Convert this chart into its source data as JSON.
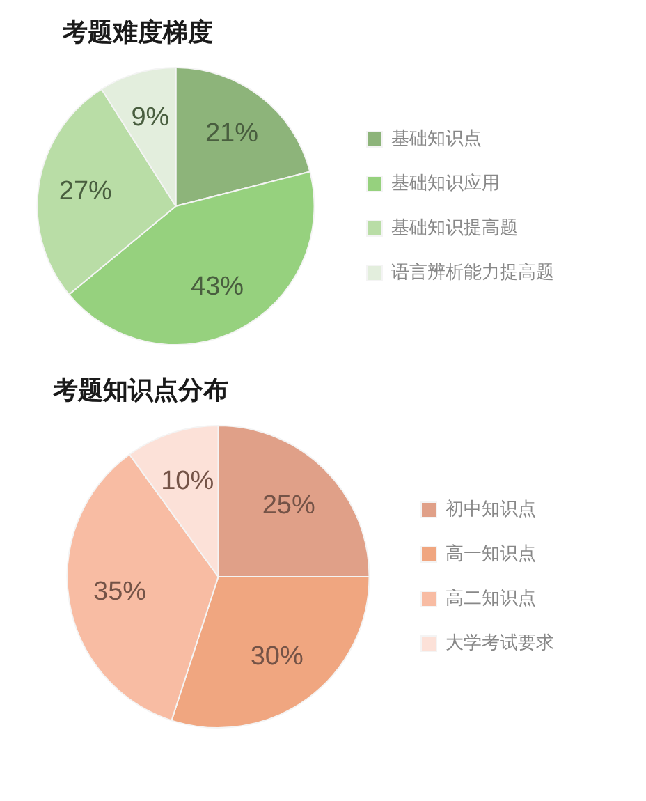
{
  "chart_data": [
    {
      "type": "pie",
      "title": "考题难度梯度",
      "categories": [
        "基础知识点",
        "基础知识应用",
        "基础知识提高题",
        "语言辨析能力提高题"
      ],
      "values": [
        21,
        43,
        27,
        9
      ],
      "colors": [
        "#8db47a",
        "#96d17e",
        "#b9dda6",
        "#e3eedd"
      ],
      "value_labels": [
        "21%",
        "43%",
        "27%",
        "9%"
      ],
      "legend": "right"
    },
    {
      "type": "pie",
      "title": "考题知识点分布",
      "categories": [
        "初中知识点",
        "高一知识点",
        "高二知识点",
        "大学考试要求"
      ],
      "values": [
        25,
        30,
        35,
        10
      ],
      "colors": [
        "#e0a088",
        "#f0a680",
        "#f8bca3",
        "#fce1d8"
      ],
      "value_labels": [
        "25%",
        "30%",
        "35%",
        "10%"
      ],
      "legend": "right"
    }
  ]
}
